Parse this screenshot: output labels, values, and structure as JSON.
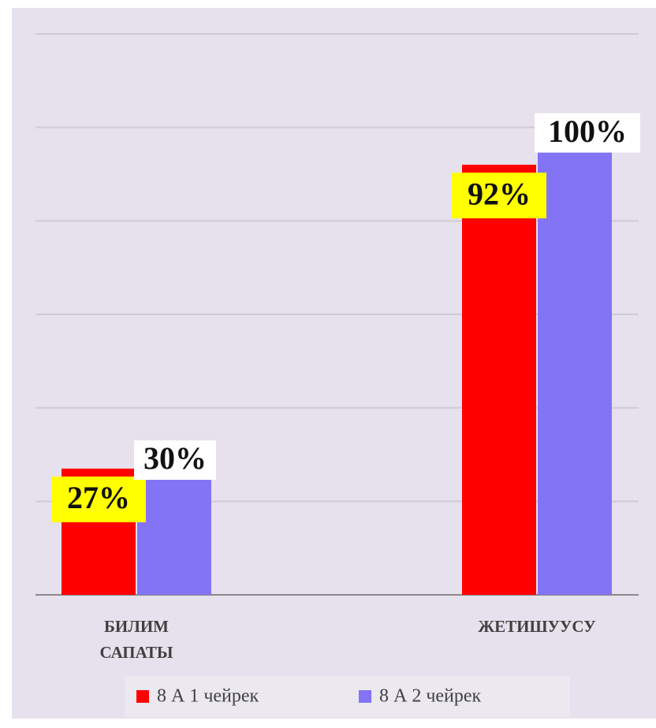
{
  "chart_data": {
    "type": "bar",
    "categories": [
      "БИЛИМ САПАТЫ",
      "ЖЕТИШУУСУ"
    ],
    "series": [
      {
        "name": "8 А 1 чейрек",
        "color": "#ff0000",
        "values": [
          27,
          92
        ],
        "value_labels": [
          "27%",
          "92%"
        ]
      },
      {
        "name": "8 А 2 чейрек",
        "color": "#8373f5",
        "values": [
          30,
          100
        ],
        "value_labels": [
          "30%",
          "100%"
        ]
      }
    ],
    "ylim": [
      0,
      120
    ],
    "yticks": [
      0,
      20,
      40,
      60,
      80,
      100,
      120
    ],
    "grid": true,
    "legend": "bottom"
  }
}
